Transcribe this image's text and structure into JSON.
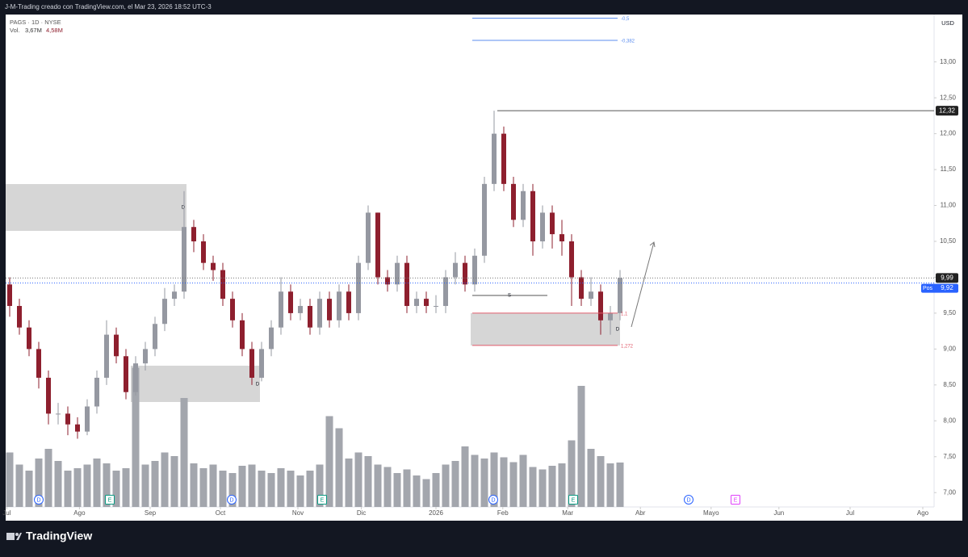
{
  "header": {
    "watermark": "J-M-Trading creado con TradingView.com, el Mar 23, 2026 18:52 UTC-3",
    "symbol": "PAGS · 1D · NYSE",
    "vol_label": "Vol.",
    "vol_value": "3,67M",
    "vol_ma": "4,58M"
  },
  "chart_data": {
    "type": "candlestick",
    "open": [
      9.9,
      9.6,
      9.3,
      9.0,
      8.6,
      8.1,
      8.1,
      7.95,
      7.85,
      8.2,
      8.6,
      9.2,
      8.9,
      8.4,
      8.8,
      9.0,
      9.35,
      9.7,
      9.8,
      10.7,
      10.5,
      10.2,
      10.1,
      9.7,
      9.4,
      9.0,
      8.6,
      9.0,
      9.3,
      9.8,
      9.5,
      9.6,
      9.3,
      9.7,
      9.4,
      9.8,
      9.5,
      10.2,
      10.9,
      10.0,
      9.9,
      10.2,
      9.6,
      9.7,
      9.6,
      9.6,
      10.0,
      10.2,
      9.9,
      10.3,
      11.3,
      12.0,
      11.3,
      10.8,
      11.2,
      10.5,
      10.9,
      10.6,
      10.5,
      10.0,
      9.7,
      9.8,
      9.4,
      9.5
    ],
    "high": [
      10.0,
      9.7,
      9.4,
      9.1,
      8.7,
      8.25,
      8.2,
      8.05,
      8.3,
      8.7,
      9.4,
      9.3,
      9.0,
      8.9,
      9.1,
      9.45,
      9.85,
      9.9,
      11.2,
      10.8,
      10.6,
      10.3,
      10.2,
      9.8,
      9.5,
      9.1,
      9.1,
      9.4,
      10.0,
      9.9,
      9.7,
      9.7,
      9.8,
      9.8,
      9.9,
      9.9,
      10.3,
      11.0,
      10.9,
      10.1,
      10.3,
      10.3,
      9.8,
      9.8,
      9.75,
      10.1,
      10.35,
      10.3,
      10.4,
      11.4,
      12.32,
      12.1,
      11.4,
      11.3,
      11.3,
      11.0,
      11.0,
      10.8,
      10.6,
      10.1,
      10.0,
      9.9,
      9.6,
      10.1
    ],
    "low": [
      9.45,
      9.2,
      8.9,
      8.45,
      7.95,
      7.95,
      7.8,
      7.75,
      7.8,
      8.1,
      8.5,
      8.8,
      8.3,
      8.35,
      8.7,
      8.9,
      9.25,
      9.6,
      9.7,
      10.35,
      10.1,
      9.95,
      9.6,
      9.3,
      8.9,
      8.5,
      8.55,
      8.9,
      9.2,
      9.4,
      9.4,
      9.2,
      9.2,
      9.3,
      9.3,
      9.4,
      9.4,
      10.1,
      9.9,
      9.8,
      9.8,
      9.5,
      9.5,
      9.5,
      9.5,
      9.5,
      9.9,
      9.8,
      9.8,
      10.2,
      11.2,
      11.2,
      10.7,
      10.7,
      10.3,
      10.4,
      10.4,
      10.3,
      9.6,
      9.6,
      9.6,
      9.2,
      9.2,
      9.4
    ],
    "close": [
      9.6,
      9.3,
      9.0,
      8.6,
      8.1,
      8.1,
      7.95,
      7.85,
      8.2,
      8.6,
      9.2,
      8.9,
      8.4,
      8.8,
      9.0,
      9.35,
      9.7,
      9.8,
      10.7,
      10.5,
      10.2,
      10.1,
      9.7,
      9.4,
      9.0,
      8.6,
      9.0,
      9.3,
      9.8,
      9.5,
      9.6,
      9.3,
      9.7,
      9.4,
      9.8,
      9.5,
      10.2,
      10.9,
      10.0,
      9.9,
      10.2,
      9.6,
      9.7,
      9.6,
      9.6,
      10.0,
      10.2,
      9.9,
      10.3,
      11.3,
      12.0,
      11.3,
      10.8,
      11.2,
      10.5,
      10.9,
      10.6,
      10.5,
      10.0,
      9.7,
      9.8,
      9.4,
      9.5,
      9.99
    ],
    "volume": [
      4.5,
      3.5,
      3,
      4,
      4.8,
      3.8,
      3,
      3.2,
      3.5,
      4,
      3.6,
      3,
      3.2,
      11.5,
      3.5,
      3.8,
      4.5,
      4.2,
      9,
      3.6,
      3.2,
      3.5,
      3,
      2.8,
      3.4,
      3.5,
      3,
      2.8,
      3.2,
      3,
      2.6,
      3,
      3.5,
      7.5,
      6.5,
      4,
      4.5,
      4.2,
      3.5,
      3.3,
      2.8,
      3.1,
      2.6,
      2.3,
      2.8,
      3.5,
      3.8,
      5,
      4.3,
      4,
      4.5,
      4.1,
      3.7,
      4.3,
      3.3,
      3.1,
      3.4,
      3.6,
      5.5,
      10,
      4.8,
      4.2,
      3.6,
      3.67
    ],
    "up_color": "#9598a1",
    "down_color": "#8e1f2e",
    "volume_color": "#a3a6ad",
    "currency": "USD",
    "ylim": [
      6.8,
      13.66
    ],
    "volume_ylim": [
      0,
      40
    ],
    "yticks": [
      {
        "value": 7,
        "label": "7,00"
      },
      {
        "value": 7.5,
        "label": "7,50"
      },
      {
        "value": 8,
        "label": "8,00"
      },
      {
        "value": 8.5,
        "label": "8,50"
      },
      {
        "value": 9,
        "label": "9,00"
      },
      {
        "value": 9.5,
        "label": "9,50"
      },
      {
        "value": 10,
        "label": "10,00"
      },
      {
        "value": 10.5,
        "label": "10,50"
      },
      {
        "value": 11,
        "label": "11,00"
      },
      {
        "value": 11.5,
        "label": "11,50"
      },
      {
        "value": 12,
        "label": "12,00"
      },
      {
        "value": 12.5,
        "label": "12,50"
      },
      {
        "value": 13,
        "label": "13,00"
      }
    ],
    "xticks": [
      {
        "value": -0.3,
        "label": "Jul"
      },
      {
        "value": 7.2,
        "label": "Ago"
      },
      {
        "value": 14.5,
        "label": "Sep"
      },
      {
        "value": 21.75,
        "label": "Oct"
      },
      {
        "value": 29.75,
        "label": "Nov"
      },
      {
        "value": 36.3,
        "label": "Dic"
      },
      {
        "value": 44,
        "label": "2026"
      },
      {
        "value": 50.9,
        "label": "Feb"
      },
      {
        "value": 57.6,
        "label": "Mar"
      },
      {
        "value": 65.1,
        "label": "Abr"
      },
      {
        "value": 72.4,
        "label": "Mayo"
      },
      {
        "value": 79.4,
        "label": "Jun"
      },
      {
        "value": 86.75,
        "label": "Jul"
      },
      {
        "value": 94.25,
        "label": "Ago"
      }
    ],
    "high_level": {
      "value": 12.32,
      "label": "12,32"
    },
    "last_price": {
      "value": 9.99,
      "label": "9,99"
    },
    "position": {
      "name": "Pos",
      "value": 9.92,
      "label": "9,92"
    },
    "fib_levels": [
      {
        "value": 13.61,
        "label": "-0,5",
        "color": "#5b8def"
      },
      {
        "value": 13.3,
        "label": "-0,382",
        "color": "#5b8def"
      },
      {
        "value": 9.5,
        "label": "1,1",
        "color": "#e05a6a"
      },
      {
        "value": 9.05,
        "label": "1,272",
        "color": "#e05a6a"
      }
    ],
    "zone_labels": [
      "D",
      "D",
      "D",
      "S"
    ],
    "events": [
      "D",
      "E",
      "D",
      "E",
      "D",
      "E",
      "D",
      "E"
    ]
  },
  "footer": {
    "brand": "TradingView"
  }
}
